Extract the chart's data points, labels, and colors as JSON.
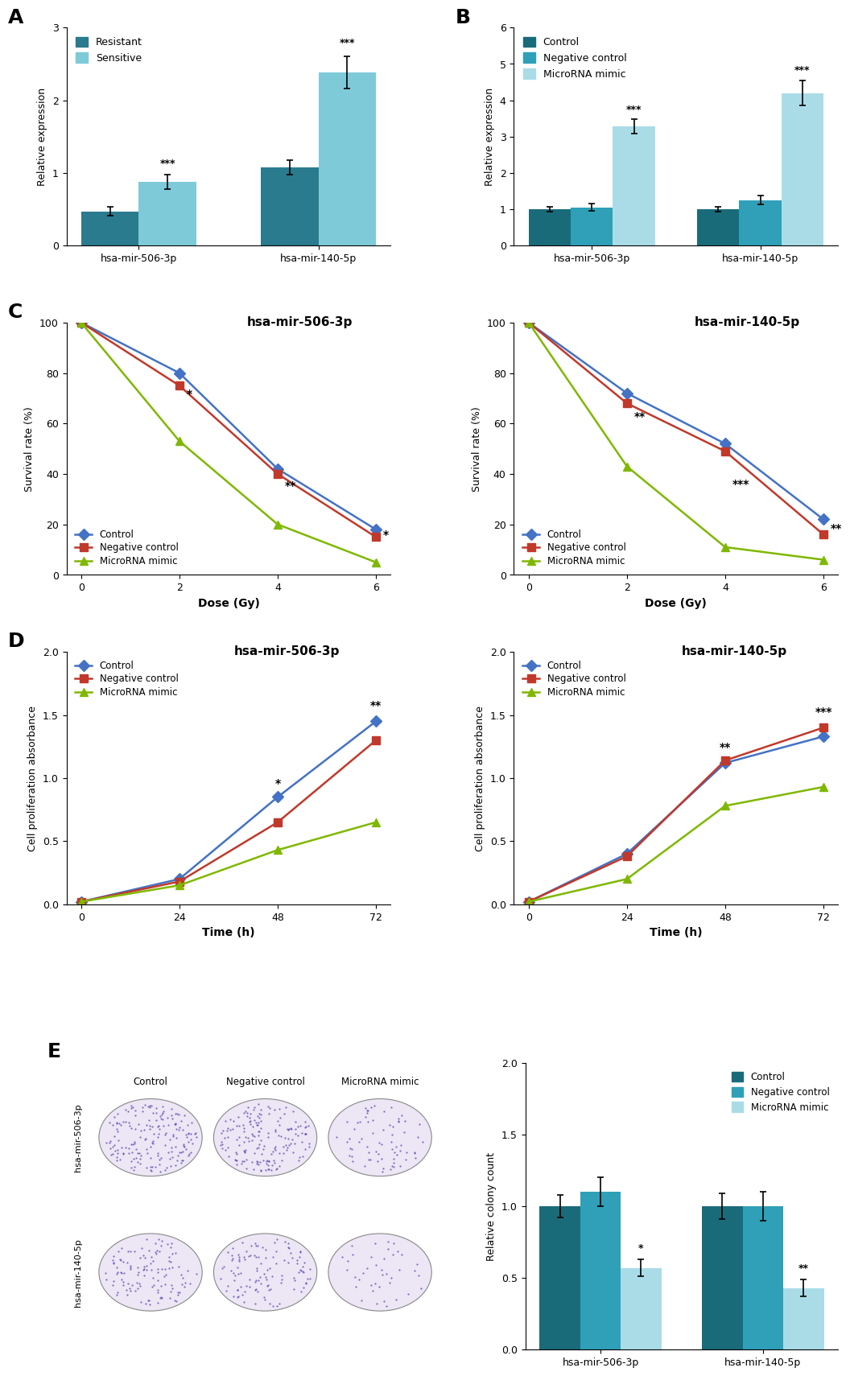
{
  "panel_A": {
    "categories": [
      "hsa-mir-506-3p",
      "hsa-mir-140-5p"
    ],
    "resistant": [
      0.47,
      1.08
    ],
    "sensitive": [
      0.88,
      2.38
    ],
    "resistant_err": [
      0.06,
      0.1
    ],
    "sensitive_err": [
      0.1,
      0.22
    ],
    "ylabel": "Relative expression",
    "ylim": [
      0,
      3
    ],
    "yticks": [
      0,
      1,
      2,
      3
    ],
    "color_resistant": "#2b7b8e",
    "color_sensitive": "#7ecad9",
    "significance_sensitive": [
      "***",
      "***"
    ],
    "sig_yoffset": [
      0.08,
      0.12
    ]
  },
  "panel_B": {
    "categories": [
      "hsa-mir-506-3p",
      "hsa-mir-140-5p"
    ],
    "control": [
      1.0,
      1.0
    ],
    "neg_control": [
      1.05,
      1.25
    ],
    "mimic": [
      3.28,
      4.2
    ],
    "control_err": [
      0.07,
      0.07
    ],
    "neg_control_err": [
      0.1,
      0.12
    ],
    "mimic_err": [
      0.2,
      0.35
    ],
    "ylabel": "Relative expression",
    "ylim": [
      0,
      6
    ],
    "yticks": [
      0,
      1,
      2,
      3,
      4,
      5,
      6
    ],
    "color_control": "#1a6b7a",
    "color_neg": "#2fa0b8",
    "color_mimic": "#aadce8",
    "significance_mimic": [
      "***",
      "***"
    ]
  },
  "panel_C_506": {
    "title": "hsa-mir-506-3p",
    "doses": [
      0,
      2,
      4,
      6
    ],
    "control": [
      100,
      80,
      42,
      18
    ],
    "neg_control": [
      100,
      75,
      40,
      15
    ],
    "mimic": [
      100,
      53,
      20,
      5
    ],
    "ylabel": "Survival rate (%)",
    "ylim": [
      0,
      100
    ],
    "yticks": [
      0,
      20,
      40,
      60,
      80,
      100
    ],
    "xlabel": "Dose (Gy)",
    "significance": [
      "*",
      "**",
      "*"
    ],
    "sig_doses": [
      2,
      4,
      6
    ],
    "sig_yoffset": [
      3,
      2,
      2
    ]
  },
  "panel_C_140": {
    "title": "hsa-mir-140-5p",
    "doses": [
      0,
      2,
      4,
      6
    ],
    "control": [
      100,
      72,
      52,
      22
    ],
    "neg_control": [
      100,
      68,
      49,
      16
    ],
    "mimic": [
      100,
      43,
      11,
      6
    ],
    "ylabel": "Survival rate (%)",
    "ylim": [
      0,
      100
    ],
    "yticks": [
      0,
      20,
      40,
      60,
      80,
      100
    ],
    "xlabel": "Dose (Gy)",
    "significance": [
      "**",
      "***",
      "**"
    ],
    "sig_doses": [
      2,
      4,
      6
    ],
    "sig_yoffset": [
      3,
      2,
      2
    ]
  },
  "panel_D_506": {
    "title": "hsa-mir-506-3p",
    "times": [
      0,
      24,
      48,
      72
    ],
    "control": [
      0.02,
      0.2,
      0.85,
      1.45
    ],
    "neg_control": [
      0.02,
      0.18,
      0.65,
      1.3
    ],
    "mimic": [
      0.02,
      0.15,
      0.43,
      0.65
    ],
    "ylabel": "Cell proliferation absorbance",
    "ylim": [
      0,
      2
    ],
    "yticks": [
      0,
      0.5,
      1.0,
      1.5,
      2.0
    ],
    "xlabel": "Time (h)",
    "significance": [
      "*",
      "**"
    ],
    "sig_times": [
      48,
      72
    ],
    "sig_yoffset": [
      0.06,
      0.08
    ]
  },
  "panel_D_140": {
    "title": "hsa-mir-140-5p",
    "times": [
      0,
      24,
      48,
      72
    ],
    "control": [
      0.02,
      0.4,
      1.12,
      1.33
    ],
    "neg_control": [
      0.02,
      0.38,
      1.14,
      1.4
    ],
    "mimic": [
      0.02,
      0.2,
      0.78,
      0.93
    ],
    "ylabel": "Cell proliferation absorbance",
    "ylim": [
      0,
      2
    ],
    "yticks": [
      0,
      0.5,
      1.0,
      1.5,
      2.0
    ],
    "xlabel": "Time (h)",
    "significance": [
      "**",
      "***"
    ],
    "sig_times": [
      48,
      72
    ],
    "sig_yoffset": [
      0.06,
      0.08
    ]
  },
  "panel_E_bar": {
    "categories": [
      "hsa-mir-506-3p",
      "hsa-mir-140-5p"
    ],
    "control": [
      1.0,
      1.0
    ],
    "neg_control": [
      1.1,
      1.0
    ],
    "mimic": [
      0.57,
      0.43
    ],
    "control_err": [
      0.08,
      0.09
    ],
    "neg_control_err": [
      0.1,
      0.1
    ],
    "mimic_err": [
      0.06,
      0.06
    ],
    "ylabel": "Relative colony count",
    "ylim": [
      0,
      2
    ],
    "yticks": [
      0,
      0.5,
      1.0,
      1.5,
      2.0
    ],
    "color_control": "#1a6b7a",
    "color_neg": "#2fa0b8",
    "color_mimic": "#aadce8",
    "significance_mimic": [
      "*",
      "**"
    ]
  },
  "colors": {
    "control_line": "#4472C4",
    "neg_control_line": "#C0392B",
    "mimic_line": "#7FB800",
    "control_marker": "D",
    "neg_marker": "s",
    "mimic_marker": "^"
  },
  "plate_data": {
    "row1_densities": [
      180,
      175,
      70
    ],
    "row2_densities": [
      120,
      115,
      40
    ]
  }
}
